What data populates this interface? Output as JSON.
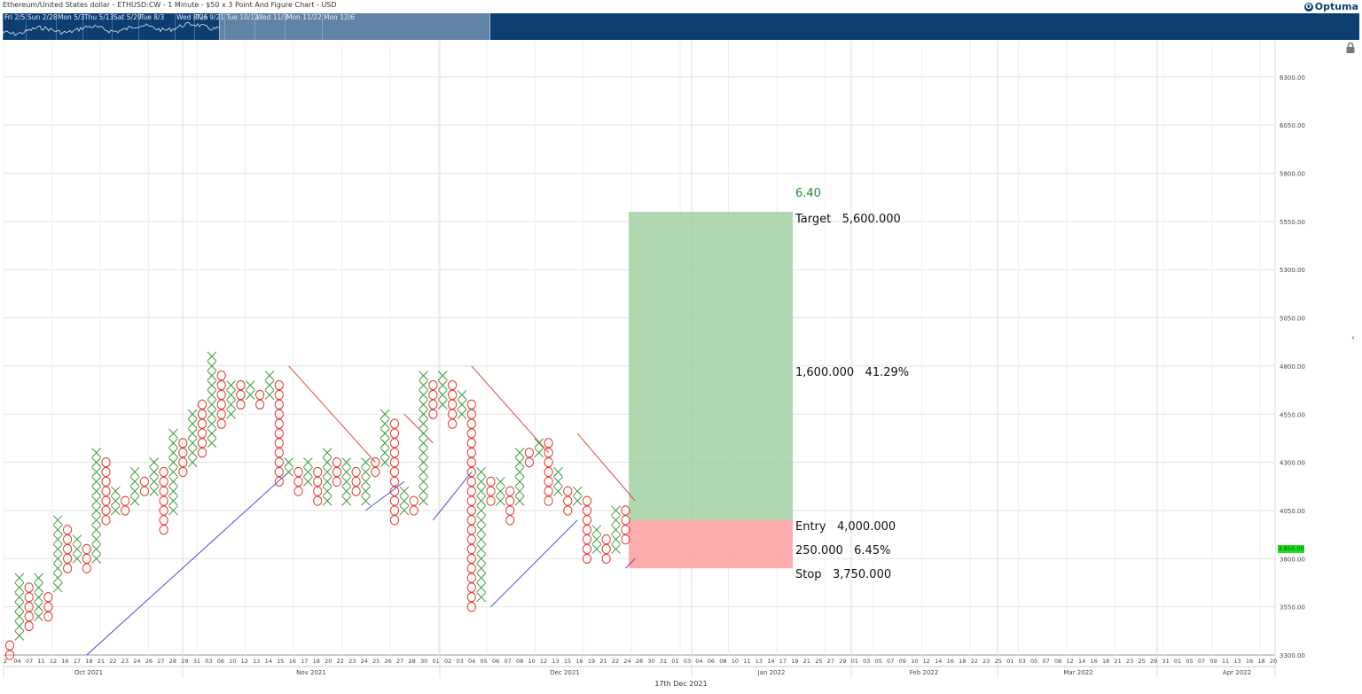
{
  "header": {
    "title": "Ethereum/United States dollar - ETHUSD:CW - 1 Minute - $50 x 3 Point And Figure Chart - USD",
    "logo_text": "Optuma"
  },
  "navigator": {
    "labels": [
      "Fri 2/5",
      "Sun 2/28",
      "Mon 5/3",
      "Thu 5/13",
      "Sat 5/29",
      "Tue 8/3",
      "Wed 8/25",
      "Tue 9/21",
      "Tue 10/12",
      "Wed 11/3",
      "Mon 11/22",
      "Mon 12/6"
    ],
    "background_color": "#0c3e72"
  },
  "icons": {
    "lock": "lock-icon",
    "collapse": "chevron-left-icon"
  },
  "footer": {
    "date_caption": "17th Dec 2021"
  },
  "chart_data": {
    "type": "point-and-figure",
    "box_size": 50,
    "reversal": 3,
    "ylim": [
      3300,
      6400
    ],
    "y_ticks": [
      3300,
      3550,
      3800,
      4050,
      4300,
      4550,
      4800,
      5050,
      5300,
      5550,
      5800,
      6050,
      6300
    ],
    "y_tick_labels": [
      "3300.00",
      "3550.00",
      "3800.00",
      "4050.00",
      "4300.00",
      "4550.00",
      "4800.00",
      "5050.00",
      "5300.00",
      "5550.00",
      "5800.00",
      "6050.00",
      "6300.00"
    ],
    "last_price_label": "3,850.00",
    "colors": {
      "x": "#3a9a3a",
      "o": "#e8302a",
      "grid": "#e2e2e2",
      "resistance": "#e8302a",
      "support": "#3b3bd6",
      "target_zone": "#9dd09d",
      "stop_zone": "#ff9d9d",
      "ratio": "#2a8a2a"
    },
    "columns": [
      {
        "t": "O",
        "lo": 3300,
        "hi": 3350
      },
      {
        "t": "X",
        "lo": 3400,
        "hi": 3700
      },
      {
        "t": "O",
        "lo": 3450,
        "hi": 3650
      },
      {
        "t": "X",
        "lo": 3500,
        "hi": 3700
      },
      {
        "t": "O",
        "lo": 3500,
        "hi": 3600
      },
      {
        "t": "X",
        "lo": 3650,
        "hi": 4000
      },
      {
        "t": "O",
        "lo": 3750,
        "hi": 3950
      },
      {
        "t": "X",
        "lo": 3800,
        "hi": 3900
      },
      {
        "t": "O",
        "lo": 3750,
        "hi": 3850
      },
      {
        "t": "X",
        "lo": 3800,
        "hi": 4350
      },
      {
        "t": "O",
        "lo": 4000,
        "hi": 4300
      },
      {
        "t": "X",
        "lo": 4050,
        "hi": 4150
      },
      {
        "t": "O",
        "lo": 4050,
        "hi": 4100
      },
      {
        "t": "X",
        "lo": 4100,
        "hi": 4250
      },
      {
        "t": "O",
        "lo": 4150,
        "hi": 4200
      },
      {
        "t": "X",
        "lo": 4150,
        "hi": 4300
      },
      {
        "t": "O",
        "lo": 3950,
        "hi": 4250
      },
      {
        "t": "X",
        "lo": 4050,
        "hi": 4450
      },
      {
        "t": "O",
        "lo": 4250,
        "hi": 4400
      },
      {
        "t": "X",
        "lo": 4300,
        "hi": 4550
      },
      {
        "t": "O",
        "lo": 4350,
        "hi": 4600
      },
      {
        "t": "X",
        "lo": 4400,
        "hi": 4850
      },
      {
        "t": "O",
        "lo": 4500,
        "hi": 4750
      },
      {
        "t": "X",
        "lo": 4550,
        "hi": 4700
      },
      {
        "t": "O",
        "lo": 4600,
        "hi": 4700
      },
      {
        "t": "X",
        "lo": 4650,
        "hi": 4700
      },
      {
        "t": "O",
        "lo": 4600,
        "hi": 4650
      },
      {
        "t": "X",
        "lo": 4650,
        "hi": 4750
      },
      {
        "t": "O",
        "lo": 4200,
        "hi": 4700
      },
      {
        "t": "X",
        "lo": 4250,
        "hi": 4300
      },
      {
        "t": "O",
        "lo": 4150,
        "hi": 4250
      },
      {
        "t": "X",
        "lo": 4200,
        "hi": 4300
      },
      {
        "t": "O",
        "lo": 4100,
        "hi": 4250
      },
      {
        "t": "X",
        "lo": 4100,
        "hi": 4350
      },
      {
        "t": "O",
        "lo": 4200,
        "hi": 4300
      },
      {
        "t": "X",
        "lo": 4100,
        "hi": 4300
      },
      {
        "t": "O",
        "lo": 4150,
        "hi": 4250
      },
      {
        "t": "X",
        "lo": 4100,
        "hi": 4300
      },
      {
        "t": "O",
        "lo": 4250,
        "hi": 4300
      },
      {
        "t": "X",
        "lo": 4300,
        "hi": 4550
      },
      {
        "t": "O",
        "lo": 4000,
        "hi": 4500
      },
      {
        "t": "X",
        "lo": 4050,
        "hi": 4150
      },
      {
        "t": "O",
        "lo": 4050,
        "hi": 4100
      },
      {
        "t": "X",
        "lo": 4100,
        "hi": 4750
      },
      {
        "t": "O",
        "lo": 4550,
        "hi": 4700
      },
      {
        "t": "X",
        "lo": 4600,
        "hi": 4750
      },
      {
        "t": "O",
        "lo": 4500,
        "hi": 4700
      },
      {
        "t": "X",
        "lo": 4550,
        "hi": 4650
      },
      {
        "t": "O",
        "lo": 3550,
        "hi": 4600
      },
      {
        "t": "X",
        "lo": 3600,
        "hi": 4250
      },
      {
        "t": "O",
        "lo": 4100,
        "hi": 4200
      },
      {
        "t": "X",
        "lo": 4100,
        "hi": 4200
      },
      {
        "t": "O",
        "lo": 4000,
        "hi": 4150
      },
      {
        "t": "X",
        "lo": 4100,
        "hi": 4350
      },
      {
        "t": "O",
        "lo": 4300,
        "hi": 4350
      },
      {
        "t": "X",
        "lo": 4350,
        "hi": 4400
      },
      {
        "t": "O",
        "lo": 4100,
        "hi": 4400
      },
      {
        "t": "X",
        "lo": 4150,
        "hi": 4250
      },
      {
        "t": "O",
        "lo": 4050,
        "hi": 4150
      },
      {
        "t": "X",
        "lo": 4100,
        "hi": 4150
      },
      {
        "t": "O",
        "lo": 3800,
        "hi": 4100
      },
      {
        "t": "X",
        "lo": 3850,
        "hi": 3950
      },
      {
        "t": "O",
        "lo": 3800,
        "hi": 3900
      },
      {
        "t": "X",
        "lo": 3850,
        "hi": 4050
      },
      {
        "t": "O",
        "lo": 3900,
        "hi": 4050
      }
    ],
    "trendlines": [
      {
        "kind": "support",
        "from": [
          8,
          3300
        ],
        "to": [
          29,
          4250
        ]
      },
      {
        "kind": "resistance",
        "from": [
          29,
          4800
        ],
        "to": [
          38,
          4300
        ]
      },
      {
        "kind": "support",
        "from": [
          37,
          4050
        ],
        "to": [
          41,
          4200
        ]
      },
      {
        "kind": "resistance",
        "from": [
          41,
          4550
        ],
        "to": [
          44,
          4400
        ]
      },
      {
        "kind": "support",
        "from": [
          44,
          4000
        ],
        "to": [
          48,
          4250
        ]
      },
      {
        "kind": "resistance",
        "from": [
          48,
          4800
        ],
        "to": [
          56,
          4350
        ]
      },
      {
        "kind": "support",
        "from": [
          50,
          3550
        ],
        "to": [
          59,
          4000
        ]
      },
      {
        "kind": "resistance",
        "from": [
          59,
          4450
        ],
        "to": [
          65,
          4100
        ]
      },
      {
        "kind": "support",
        "from": [
          64,
          3750
        ],
        "to": [
          65,
          3800
        ]
      }
    ],
    "trade": {
      "ratio": "6.40",
      "target_price": 5600,
      "entry_price": 4000,
      "stop_price": 3750,
      "target_label": "Target   5,600.000",
      "reward_label": "1,600.000   41.29%",
      "entry_label": "Entry   4,000.000",
      "risk_label": "250.000   6.45%",
      "stop_label": "Stop   3,750.000"
    },
    "x_tick_labels": [
      "2",
      "04",
      "07",
      "11",
      "12",
      "16",
      "17",
      "18",
      "21",
      "22",
      "23",
      "24",
      "26",
      "27",
      "28",
      "29",
      "31",
      "03",
      "06",
      "10",
      "12",
      "13",
      "14",
      "15",
      "16",
      "17",
      "18",
      "20",
      "22",
      "23",
      "24",
      "25",
      "26",
      "27",
      "28",
      "30",
      "01",
      "02",
      "03",
      "04",
      "05",
      "06",
      "07",
      "08",
      "10",
      "12",
      "13",
      "15",
      "16",
      "19",
      "21",
      "22",
      "24",
      "28",
      "30",
      "31",
      "01",
      "03",
      "04",
      "06",
      "08",
      "10",
      "11",
      "13",
      "14",
      "17",
      "19",
      "21",
      "25",
      "27",
      "29",
      "01",
      "03",
      "05",
      "07",
      "09",
      "10",
      "12",
      "14",
      "16",
      "18",
      "22",
      "23",
      "25",
      "01",
      "03",
      "05",
      "07",
      "08",
      "12",
      "14",
      "16",
      "18",
      "21",
      "23",
      "25",
      "29",
      "31",
      "01",
      "05",
      "07",
      "09",
      "11",
      "13",
      "16",
      "18",
      "20"
    ],
    "month_labels": [
      "Oct 2021",
      "Nov 2021",
      "Dec 2021",
      "Jan 2022",
      "Feb 2022",
      "Mar 2022",
      "Apr 2022"
    ]
  }
}
